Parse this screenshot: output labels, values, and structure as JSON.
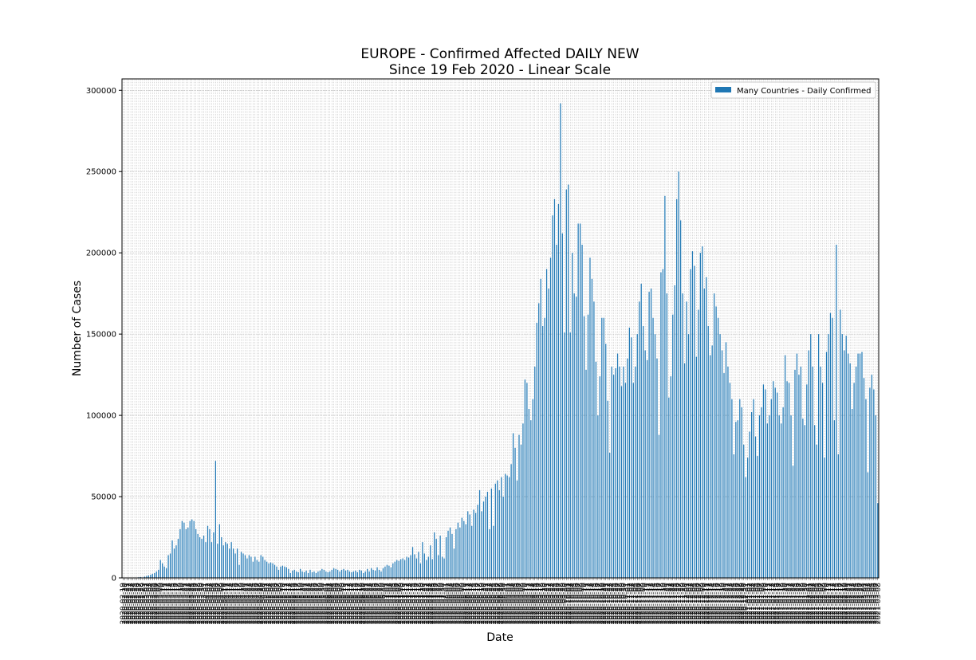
{
  "chart_data": {
    "type": "bar",
    "title": "EUROPE - Confirmed Affected DAILY NEW",
    "subtitle": "Since 19 Feb 2020 - Linear Scale",
    "xlabel": "Date",
    "ylabel": "Number of Cases",
    "ylim": [
      0,
      307000
    ],
    "yticks": [
      0,
      50000,
      100000,
      150000,
      200000,
      250000,
      300000
    ],
    "grid": true,
    "legend_position": "top-right",
    "series": [
      {
        "name": "Many Countries - Daily Confirmed",
        "color": "#1f77b4",
        "start_date": "2020-02-19",
        "values": [
          0,
          0,
          0,
          0,
          0,
          100,
          200,
          200,
          400,
          500,
          300,
          800,
          1200,
          1500,
          2000,
          2500,
          3000,
          4000,
          5000,
          11000,
          9000,
          7000,
          6000,
          14000,
          15000,
          23000,
          18000,
          20000,
          24000,
          30000,
          35000,
          34000,
          30000,
          31000,
          35000,
          36000,
          35000,
          30000,
          27000,
          25000,
          24000,
          26000,
          22000,
          32000,
          30000,
          22000,
          28000,
          72000,
          21000,
          33000,
          25000,
          20000,
          22000,
          21000,
          18000,
          22000,
          18000,
          15000,
          18000,
          8000,
          16000,
          15000,
          14000,
          12000,
          14000,
          13000,
          10000,
          13000,
          11000,
          10000,
          14000,
          13000,
          11000,
          10000,
          9000,
          9500,
          9000,
          8000,
          7000,
          5000,
          7000,
          7500,
          7000,
          6500,
          5500,
          3000,
          4500,
          5000,
          4000,
          3500,
          5500,
          4000,
          3500,
          4500,
          3000,
          5000,
          3500,
          4000,
          3000,
          4000,
          4500,
          5500,
          5000,
          4000,
          3500,
          4000,
          5000,
          6000,
          5500,
          5000,
          4000,
          5000,
          5500,
          4500,
          5000,
          4000,
          3500,
          4000,
          4500,
          3500,
          5000,
          4500,
          3000,
          4000,
          5500,
          4000,
          6000,
          5000,
          4500,
          6500,
          5000,
          4000,
          6000,
          7000,
          8000,
          7500,
          6500,
          9000,
          10000,
          11000,
          10500,
          11500,
          12000,
          11000,
          13000,
          12500,
          14000,
          19000,
          14500,
          12000,
          16000,
          9000,
          22000,
          15000,
          11000,
          13000,
          20000,
          11500,
          28000,
          24000,
          14000,
          26000,
          13000,
          12000,
          25000,
          29000,
          31000,
          27000,
          18000,
          30000,
          34000,
          31000,
          37000,
          35000,
          33000,
          41000,
          39000,
          32000,
          42000,
          40000,
          45000,
          54000,
          41000,
          47000,
          50000,
          53000,
          30000,
          55000,
          32000,
          58000,
          60000,
          54000,
          62000,
          50000,
          64000,
          63000,
          62000,
          70000,
          89000,
          80000,
          60000,
          88000,
          82000,
          95000,
          122000,
          120000,
          104000,
          97000,
          110000,
          130000,
          157000,
          169000,
          184000,
          155000,
          160000,
          190000,
          178000,
          197000,
          223000,
          233000,
          205000,
          230000,
          292000,
          212000,
          151000,
          239000,
          242000,
          151000,
          200000,
          175000,
          173000,
          218000,
          218000,
          205000,
          161000,
          128000,
          162000,
          197000,
          184000,
          170000,
          133000,
          100000,
          124000,
          160000,
          160000,
          144000,
          109000,
          77000,
          130000,
          125000,
          129000,
          138000,
          130000,
          118000,
          130000,
          120000,
          135000,
          154000,
          148000,
          120000,
          130000,
          150000,
          170000,
          181000,
          155000,
          140000,
          134000,
          176000,
          178000,
          160000,
          150000,
          135000,
          88000,
          188000,
          190000,
          235000,
          175000,
          111000,
          124000,
          162000,
          180000,
          233000,
          250000,
          220000,
          175000,
          132000,
          170000,
          150000,
          190000,
          201000,
          192000,
          136000,
          165000,
          200000,
          204000,
          178000,
          185000,
          155000,
          137000,
          143000,
          175000,
          167000,
          160000,
          150000,
          140000,
          126000,
          145000,
          130000,
          120000,
          110000,
          76000,
          96000,
          97000,
          110000,
          105000,
          82000,
          62000,
          74000,
          90000,
          102000,
          110000,
          87000,
          75000,
          100000,
          105000,
          119000,
          116000,
          95000,
          100000,
          110000,
          121000,
          117000,
          114000,
          100000,
          95000,
          105000,
          137000,
          121000,
          120000,
          100000,
          69000,
          128000,
          138000,
          125000,
          130000,
          98000,
          94000,
          119000,
          140000,
          150000,
          130000,
          94000,
          82000,
          150000,
          130000,
          120000,
          74000,
          139000,
          150000,
          163000,
          160000,
          97000,
          205000,
          76000,
          165000,
          150000,
          140000,
          149000,
          138000,
          132000,
          104000,
          120000,
          130000,
          138000,
          138000,
          139000,
          123000,
          110000,
          65000,
          117000,
          125000,
          116000,
          100000,
          46000
        ]
      }
    ]
  }
}
